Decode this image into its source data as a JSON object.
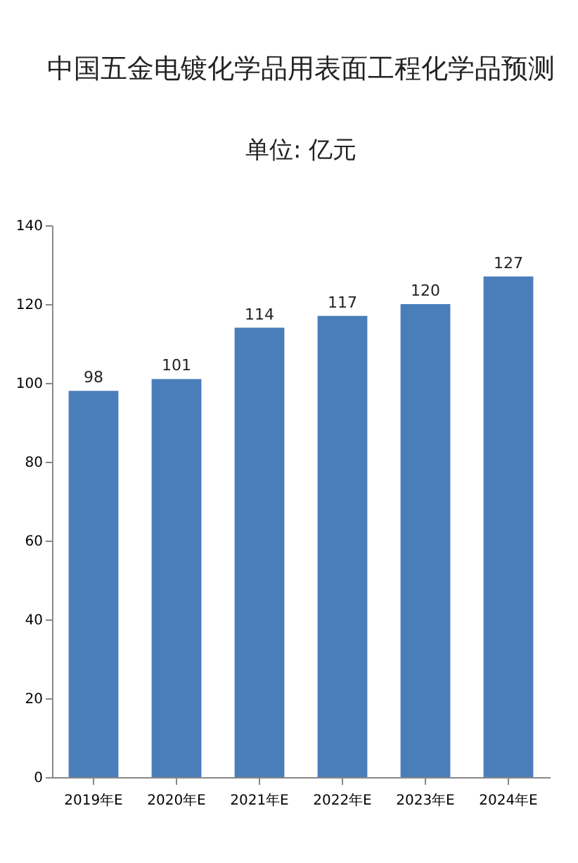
{
  "chart_data": {
    "type": "bar",
    "title": "中国五金电镀化学品用表面工程化学品预测",
    "subtitle": "单位: 亿元",
    "categories": [
      "2019年E",
      "2020年E",
      "2021年E",
      "2022年E",
      "2023年E",
      "2024年E"
    ],
    "values": [
      98,
      101,
      114,
      117,
      120,
      127
    ],
    "color": "#4a7ebb",
    "ylim": [
      0,
      140
    ],
    "yticks": [
      0,
      20,
      40,
      60,
      80,
      100,
      120,
      140
    ],
    "grid": false,
    "data_labels": true
  }
}
